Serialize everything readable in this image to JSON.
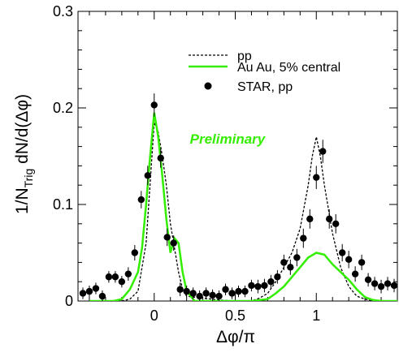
{
  "chart_data": {
    "type": "line",
    "xlabel": "Δφ/π",
    "ylabel_main": "1/N",
    "ylabel_sub": "Trig",
    "ylabel_rest": " dN/d(Δφ)",
    "xlim": [
      -0.47,
      1.5
    ],
    "ylim": [
      0,
      0.3
    ],
    "x_ticks": [
      {
        "v": 0,
        "label": "0"
      },
      {
        "v": 0.5,
        "label": "0.5"
      },
      {
        "v": 1,
        "label": "1"
      }
    ],
    "y_ticks": [
      {
        "v": 0,
        "label": "0"
      },
      {
        "v": 0.1,
        "label": "0.1"
      },
      {
        "v": 0.2,
        "label": "0.2"
      },
      {
        "v": 0.3,
        "label": "0.3"
      }
    ],
    "annotation": {
      "text": "Preliminary",
      "color": "#33ee00",
      "x": 0.22,
      "y": 0.163
    },
    "legend_position": "top-right",
    "series": [
      {
        "name": "pp",
        "style": "dashed",
        "color": "#000000",
        "x": [
          -0.2,
          -0.15,
          -0.1,
          -0.05,
          0,
          0.025,
          0.05,
          0.075,
          0.1,
          0.125,
          0.15,
          0.175,
          0.2,
          0.3,
          0.4,
          0.5,
          0.6,
          0.65,
          0.7,
          0.75,
          0.8,
          0.85,
          0.9,
          0.95,
          0.975,
          1.0,
          1.025,
          1.05,
          1.1,
          1.15,
          1.2,
          1.25,
          1.3,
          1.35,
          1.4,
          1.45,
          1.5
        ],
        "y": [
          0,
          0.002,
          0.01,
          0.06,
          0.185,
          0.175,
          0.15,
          0.12,
          0.08,
          0.055,
          0.03,
          0.012,
          0.005,
          0.003,
          0.001,
          0,
          0,
          0.003,
          0.008,
          0.02,
          0.035,
          0.05,
          0.075,
          0.12,
          0.15,
          0.17,
          0.15,
          0.12,
          0.07,
          0.035,
          0.015,
          0.005,
          0.002,
          0,
          0,
          0,
          0
        ]
      },
      {
        "name": "Au Au, 5% central",
        "style": "solid",
        "color": "#33ee00",
        "x": [
          -0.4,
          -0.35,
          -0.3,
          -0.25,
          -0.2,
          -0.15,
          -0.1,
          -0.075,
          -0.05,
          -0.025,
          0,
          0.025,
          0.05,
          0.075,
          0.1,
          0.125,
          0.15,
          0.175,
          0.2,
          0.25,
          0.3,
          0.6,
          0.7,
          0.75,
          0.8,
          0.85,
          0.9,
          0.95,
          1.0,
          1.05,
          1.1,
          1.15,
          1.2,
          1.25,
          1.3,
          1.35,
          1.4,
          1.45,
          1.5
        ],
        "y": [
          0,
          0,
          0,
          0,
          0.002,
          0.012,
          0.03,
          0.055,
          0.1,
          0.15,
          0.195,
          0.17,
          0.13,
          0.085,
          0.05,
          0.065,
          0.06,
          0.03,
          0.01,
          0,
          0,
          0,
          0.002,
          0.008,
          0.015,
          0.025,
          0.035,
          0.045,
          0.05,
          0.048,
          0.038,
          0.03,
          0.022,
          0.012,
          0.004,
          0.001,
          0,
          0,
          0
        ]
      },
      {
        "name": "STAR, pp",
        "style": "markers",
        "color": "#000000",
        "x": [
          -0.44,
          -0.4,
          -0.36,
          -0.32,
          -0.28,
          -0.24,
          -0.2,
          -0.16,
          -0.12,
          -0.08,
          -0.04,
          0,
          0.04,
          0.08,
          0.12,
          0.16,
          0.2,
          0.24,
          0.28,
          0.32,
          0.36,
          0.4,
          0.44,
          0.48,
          0.52,
          0.56,
          0.6,
          0.64,
          0.68,
          0.72,
          0.76,
          0.8,
          0.84,
          0.88,
          0.92,
          0.96,
          1.0,
          1.04,
          1.08,
          1.12,
          1.16,
          1.2,
          1.24,
          1.28,
          1.32,
          1.36,
          1.4,
          1.44,
          1.48
        ],
        "y": [
          0.008,
          0.01,
          0.013,
          0.005,
          0.025,
          0.025,
          0.02,
          0.028,
          0.05,
          0.105,
          0.13,
          0.203,
          0.148,
          0.066,
          0.06,
          0.012,
          0.01,
          0.008,
          0.005,
          0.008,
          0.006,
          0.005,
          0.012,
          0.008,
          0.01,
          0.01,
          0.016,
          0.015,
          0.016,
          0.02,
          0.025,
          0.04,
          0.035,
          0.045,
          0.065,
          0.085,
          0.128,
          0.155,
          0.085,
          0.08,
          0.05,
          0.043,
          0.028,
          0.04,
          0.022,
          0.018,
          0.015,
          0.018,
          0.016
        ],
        "err": [
          0.006,
          0.006,
          0.006,
          0.006,
          0.006,
          0.006,
          0.006,
          0.007,
          0.008,
          0.009,
          0.01,
          0.012,
          0.01,
          0.009,
          0.008,
          0.007,
          0.006,
          0.006,
          0.006,
          0.006,
          0.006,
          0.006,
          0.006,
          0.006,
          0.006,
          0.006,
          0.006,
          0.007,
          0.007,
          0.007,
          0.007,
          0.008,
          0.008,
          0.009,
          0.01,
          0.01,
          0.012,
          0.012,
          0.01,
          0.01,
          0.009,
          0.009,
          0.008,
          0.008,
          0.007,
          0.007,
          0.007,
          0.007,
          0.007
        ]
      }
    ]
  }
}
